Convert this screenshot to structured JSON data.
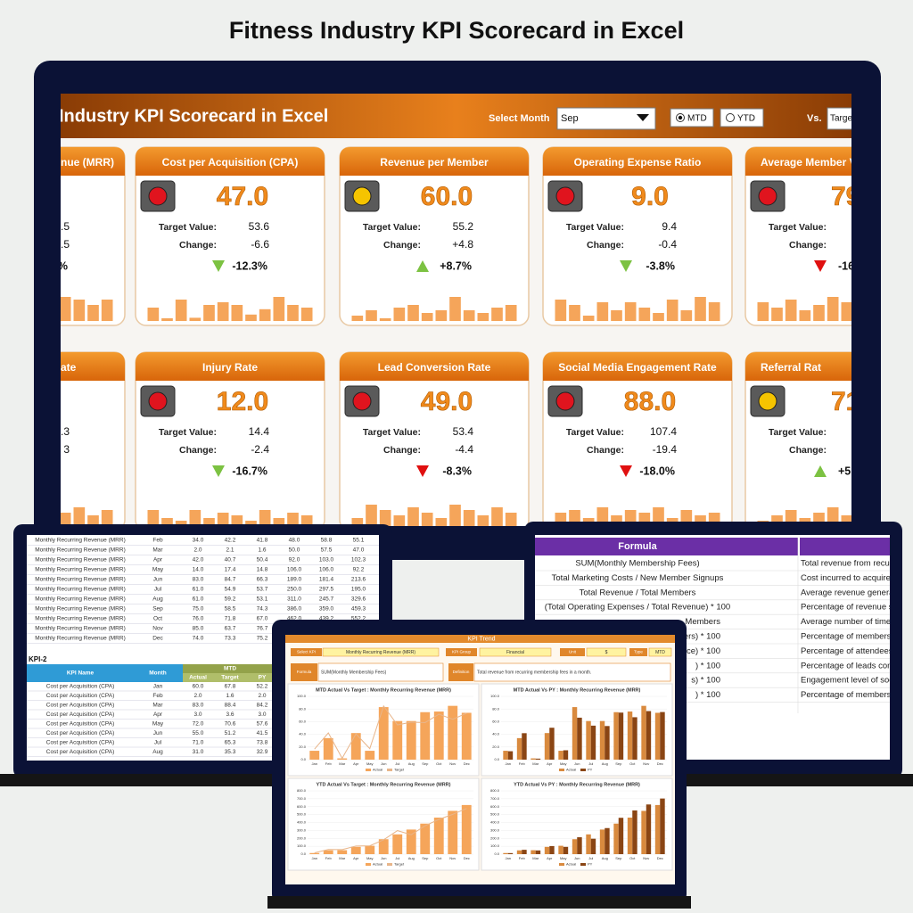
{
  "title": "Fitness Industry KPI Scorecard in Excel",
  "dashboard": {
    "header": {
      "title": "Industry KPI Scorecard in Excel",
      "select_month_label": "Select Month",
      "month": "Sep",
      "mtd": "MTD",
      "ytd": "YTD",
      "vs_label": "Vs.",
      "vs_value": "Targe"
    },
    "labels": {
      "target": "Target Value:",
      "change": "Change:"
    },
    "trend_ylim": [
      0,
      100
    ],
    "cards": [
      {
        "title": "nue (MRR)",
        "target": ".5",
        "change": ".5",
        "pct": "%",
        "trend": [
          30,
          20,
          45,
          15,
          35,
          25,
          40,
          20,
          45,
          40,
          30,
          40
        ]
      },
      {
        "title": "Cost per Acquisition (CPA)",
        "value": "47.0",
        "target": "53.6",
        "change": "-6.6",
        "pct": "-12.3%",
        "light": "#e0141e",
        "arrow": "down",
        "arrow_color": "#7cc242",
        "trend": [
          25,
          5,
          40,
          6,
          30,
          35,
          30,
          12,
          22,
          45,
          30,
          25
        ]
      },
      {
        "title": "Revenue per Member",
        "value": "60.0",
        "target": "55.2",
        "change": "+4.8",
        "pct": "+8.7%",
        "light": "#f5c400",
        "arrow": "up",
        "arrow_color": "#7cc242",
        "trend": [
          10,
          20,
          5,
          25,
          30,
          15,
          20,
          45,
          20,
          15,
          25,
          30
        ]
      },
      {
        "title": "Operating Expense Ratio",
        "value": "9.0",
        "target": "9.4",
        "change": "-0.4",
        "pct": "-3.8%",
        "light": "#e0141e",
        "arrow": "down",
        "arrow_color": "#7cc242",
        "trend": [
          40,
          30,
          10,
          35,
          20,
          35,
          25,
          15,
          40,
          20,
          45,
          35
        ]
      },
      {
        "title": "Average Member Visi",
        "value": "79",
        "pct": "-16",
        "light": "#e0141e",
        "arrow": "down",
        "arrow_color": "#e01010",
        "trend": [
          35,
          25,
          40,
          20,
          30,
          45,
          35,
          25,
          30,
          40,
          30,
          35
        ]
      },
      {
        "title": "ate",
        "target": ".3",
        "change": "3",
        "trend": [
          20,
          30,
          15,
          35,
          25,
          20,
          30,
          15,
          25,
          35,
          20,
          30
        ]
      },
      {
        "title": "Injury Rate",
        "value": "12.0",
        "target": "14.4",
        "change": "-2.4",
        "pct": "-16.7%",
        "light": "#e0141e",
        "arrow": "down",
        "arrow_color": "#7cc242",
        "trend": [
          30,
          15,
          10,
          30,
          15,
          25,
          20,
          10,
          30,
          15,
          25,
          20
        ]
      },
      {
        "title": "Lead Conversion Rate",
        "value": "49.0",
        "target": "53.4",
        "change": "-4.4",
        "pct": "-8.3%",
        "light": "#e0141e",
        "arrow": "down",
        "arrow_color": "#e01010",
        "trend": [
          15,
          40,
          30,
          20,
          35,
          25,
          15,
          40,
          30,
          20,
          35,
          25
        ]
      },
      {
        "title": "Social Media Engagement Rate",
        "value": "88.0",
        "target": "107.4",
        "change": "-19.4",
        "pct": "-18.0%",
        "light": "#e0141e",
        "arrow": "down",
        "arrow_color": "#e01010",
        "trend": [
          25,
          30,
          15,
          35,
          20,
          30,
          25,
          35,
          15,
          30,
          20,
          25
        ]
      },
      {
        "title": "Referral Rat",
        "value": "71",
        "pct": "+5.",
        "light": "#f5c400",
        "arrow": "up",
        "arrow_color": "#7cc242",
        "trend": [
          10,
          20,
          30,
          15,
          25,
          35,
          20,
          30,
          25,
          15,
          30,
          20
        ]
      }
    ]
  },
  "mrr_table": {
    "rows": [
      [
        "Monthly Recurring Revenue (MRR)",
        "Feb",
        "34.0",
        "42.2",
        "41.8",
        "48.0",
        "58.8",
        "55.1"
      ],
      [
        "Monthly Recurring Revenue (MRR)",
        "Mar",
        "2.0",
        "2.1",
        "1.6",
        "50.0",
        "57.5",
        "47.0"
      ],
      [
        "Monthly Recurring Revenue (MRR)",
        "Apr",
        "42.0",
        "40.7",
        "50.4",
        "92.0",
        "103.0",
        "102.3"
      ],
      [
        "Monthly Recurring Revenue (MRR)",
        "May",
        "14.0",
        "17.4",
        "14.8",
        "106.0",
        "106.0",
        "92.2"
      ],
      [
        "Monthly Recurring Revenue (MRR)",
        "Jun",
        "83.0",
        "84.7",
        "66.3",
        "189.0",
        "181.4",
        "213.6"
      ],
      [
        "Monthly Recurring Revenue (MRR)",
        "Jul",
        "61.0",
        "54.9",
        "53.7",
        "250.0",
        "297.5",
        "195.0"
      ],
      [
        "Monthly Recurring Revenue (MRR)",
        "Aug",
        "61.0",
        "59.2",
        "53.1",
        "311.0",
        "245.7",
        "329.6"
      ],
      [
        "Monthly Recurring Revenue (MRR)",
        "Sep",
        "75.0",
        "58.5",
        "74.3",
        "386.0",
        "359.0",
        "459.3"
      ],
      [
        "Monthly Recurring Revenue (MRR)",
        "Oct",
        "76.0",
        "71.8",
        "67.0",
        "462.0",
        "439.2",
        "552.2"
      ],
      [
        "Monthly Recurring Revenue (MRR)",
        "Nov",
        "85.0",
        "63.7",
        "76.7"
      ],
      [
        "Monthly Recurring Revenue (MRR)",
        "Dec",
        "74.0",
        "73.3",
        "75.2"
      ]
    ]
  },
  "kpi2": {
    "label": "KPI-2",
    "headers": [
      "KPI Name",
      "Month",
      "MTD",
      "Actual",
      "Target",
      "PY"
    ],
    "rows": [
      [
        "Cost per Acquisition (CPA)",
        "Jan",
        "60.0",
        "67.8",
        "52.2"
      ],
      [
        "Cost per Acquisition (CPA)",
        "Feb",
        "2.0",
        "1.6",
        "2.0"
      ],
      [
        "Cost per Acquisition (CPA)",
        "Mar",
        "83.0",
        "88.4",
        "84.2"
      ],
      [
        "Cost per Acquisition (CPA)",
        "Apr",
        "3.0",
        "3.6",
        "3.0"
      ],
      [
        "Cost per Acquisition (CPA)",
        "May",
        "72.0",
        "70.6",
        "57.6"
      ],
      [
        "Cost per Acquisition (CPA)",
        "Jun",
        "55.0",
        "51.2",
        "41.5"
      ],
      [
        "Cost per Acquisition (CPA)",
        "Jul",
        "71.0",
        "65.3",
        "73.8"
      ],
      [
        "Cost per Acquisition (CPA)",
        "Aug",
        "31.0",
        "35.3",
        "32.9"
      ]
    ]
  },
  "formula_table": {
    "header": "Formula",
    "rows": [
      [
        "SUM(Monthly Membership Fees)",
        "Total revenue from recu"
      ],
      [
        "Total Marketing Costs / New Member Signups",
        "Cost incurred to acquire"
      ],
      [
        "Total Revenue / Total Members",
        "Average revenue generat"
      ],
      [
        "(Total Operating Expenses / Total Revenue) * 100",
        "Percentage of revenue sp"
      ],
      [
        "Members",
        "Average number of times"
      ],
      [
        "bers) * 100",
        "Percentage of members"
      ],
      [
        "ce) * 100",
        "Percentage of attendees"
      ],
      [
        ") * 100",
        "Percentage of leads con"
      ],
      [
        "s) * 100",
        "Engagement level of soc"
      ],
      [
        ") * 100",
        "Percentage of members"
      ]
    ]
  },
  "kpi_trend": {
    "title": "KPI Trend",
    "fields": [
      {
        "label": "Select KPI",
        "value": "Monthly Recurring Revenue (MRR)"
      },
      {
        "label": "KPI Group",
        "value": "Financial"
      },
      {
        "label": "Unit",
        "value": "$"
      },
      {
        "label": "Type",
        "value": "MTD"
      }
    ],
    "formula_label": "Formula",
    "formula": "SUM(Monthly Membership Fees)",
    "definition_label": "Definition",
    "definition": "Total revenue from recurring membership fees in a month.",
    "charts": [
      {
        "type": "bar",
        "title": "MTD Actual Vs Target : Monthly Recurring Revenue (MRR)",
        "categories": [
          "Jan",
          "Feb",
          "Mar",
          "Apr",
          "May",
          "Jun",
          "Jul",
          "Aug",
          "Sep",
          "Oct",
          "Nov",
          "Dec"
        ],
        "ylim": [
          0,
          100
        ],
        "yticks": [
          {
            "value": 0,
            "label": "0.0"
          },
          {
            "value": 20,
            "label": "20.0"
          },
          {
            "value": 40,
            "label": "40.0"
          },
          {
            "value": 60,
            "label": "60.0"
          },
          {
            "value": 80,
            "label": "80.0"
          },
          {
            "value": 100,
            "label": "100.0"
          }
        ],
        "series": [
          {
            "name": "Actual",
            "color": "#f5a55a",
            "values": [
              14,
              34,
              2,
              42,
              14,
              83,
              61,
              61,
              75,
              76,
              85,
              74
            ]
          },
          {
            "name": "Target",
            "color": "#e8b58a",
            "style": "line",
            "values": [
              16.6,
              42.2,
              2.1,
              40.7,
              17.4,
              84.7,
              54.9,
              59.2,
              58.5,
              71.8,
              63.7,
              73.3
            ]
          }
        ]
      },
      {
        "type": "bar",
        "title": "MTD Actual Vs PY : Monthly Recurring Revenue (MRR)",
        "categories": [
          "Jan",
          "Feb",
          "Mar",
          "Apr",
          "May",
          "Jun",
          "Jul",
          "Aug",
          "Sep",
          "Oct",
          "Nov",
          "Dec"
        ],
        "ylim": [
          0,
          100
        ],
        "yticks": [
          {
            "value": 0,
            "label": "0.0"
          },
          {
            "value": 20,
            "label": "20.0"
          },
          {
            "value": 40,
            "label": "40.0"
          },
          {
            "value": 60,
            "label": "60.0"
          },
          {
            "value": 80,
            "label": "80.0"
          },
          {
            "value": 100,
            "label": "100.0"
          }
        ],
        "series": [
          {
            "name": "Actual",
            "color": "#d98a3e",
            "values": [
              14,
              34,
              2,
              42,
              14,
              83,
              61,
              61,
              75,
              76,
              85,
              74
            ]
          },
          {
            "name": "PY",
            "color": "#8a4514",
            "values": [
              13.3,
              41.8,
              1.6,
              50.4,
              14.8,
              66.3,
              53.7,
              53.1,
              74.3,
              67.0,
              76.7,
              75.2
            ]
          }
        ]
      },
      {
        "type": "bar",
        "title": "YTD Actual Vs Target : Monthly Recurring Revenue (MRR)",
        "categories": [
          "Jan",
          "Feb",
          "Mar",
          "Apr",
          "May",
          "Jun",
          "Jul",
          "Aug",
          "Sep",
          "Oct",
          "Nov",
          "Dec"
        ],
        "ylim": [
          0,
          800
        ],
        "yticks": [
          {
            "value": 0,
            "label": "0.0"
          },
          {
            "value": 100,
            "label": "100.0"
          },
          {
            "value": 200,
            "label": "200.0"
          },
          {
            "value": 300,
            "label": "300.0"
          },
          {
            "value": 400,
            "label": "400.0"
          },
          {
            "value": 500,
            "label": "500.0"
          },
          {
            "value": 600,
            "label": "600.0"
          },
          {
            "value": 700,
            "label": "700.0"
          },
          {
            "value": 800,
            "label": "800.0"
          }
        ],
        "series": [
          {
            "name": "Actual",
            "color": "#f5a55a",
            "values": [
              14,
              48,
              50,
              92,
              106,
              189,
              250,
              311,
              386,
              462,
              547,
              621
            ]
          },
          {
            "name": "Target",
            "color": "#e8b58a",
            "style": "line",
            "values": [
              16.6,
              58.8,
              57.5,
              103,
              106,
              181.4,
              297.5,
              245.7,
              359,
              439.2,
              502.9,
              576.8
            ]
          }
        ]
      },
      {
        "type": "bar",
        "title": "YTD Actual Vs PY : Monthly Recurring Revenue (MRR)",
        "categories": [
          "Jan",
          "Feb",
          "Mar",
          "Apr",
          "May",
          "Jun",
          "Jul",
          "Aug",
          "Sep",
          "Oct",
          "Nov",
          "Dec"
        ],
        "ylim": [
          0,
          800
        ],
        "yticks": [
          {
            "value": 0,
            "label": "0.0"
          },
          {
            "value": 100,
            "label": "100.0"
          },
          {
            "value": 200,
            "label": "200.0"
          },
          {
            "value": 300,
            "label": "300.0"
          },
          {
            "value": 400,
            "label": "400.0"
          },
          {
            "value": 500,
            "label": "500.0"
          },
          {
            "value": 600,
            "label": "600.0"
          },
          {
            "value": 700,
            "label": "700.0"
          },
          {
            "value": 800,
            "label": "800.0"
          }
        ],
        "series": [
          {
            "name": "Actual",
            "color": "#d98a3e",
            "values": [
              14,
              48,
              50,
              92,
              106,
              189,
              250,
              311,
              386,
              462,
              547,
              621
            ]
          },
          {
            "name": "PY",
            "color": "#8a4514",
            "values": [
              13.3,
              55.1,
              47,
              102.3,
              92.2,
              213.6,
              195,
              329.6,
              459.3,
              552.2,
              628,
              703
            ]
          }
        ]
      }
    ]
  }
}
